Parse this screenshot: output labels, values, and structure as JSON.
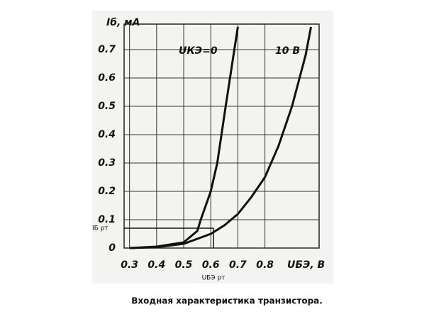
{
  "chart_data": {
    "type": "line",
    "y_label": "Iб, мА",
    "x_label": "UБЭ, В",
    "caption": "Входная характеристика транзистора.",
    "xlim": [
      0.28,
      1.0
    ],
    "ylim": [
      0,
      0.79
    ],
    "xticks": [
      0.3,
      0.4,
      0.5,
      0.6,
      0.7,
      0.8
    ],
    "yticks": [
      0,
      0.1,
      0.2,
      0.3,
      0.4,
      0.5,
      0.6,
      0.7
    ],
    "grid": true,
    "series": [
      {
        "name": "UКЭ=0",
        "color": "#111111",
        "x": [
          0.3,
          0.4,
          0.5,
          0.55,
          0.563,
          0.6,
          0.624,
          0.655,
          0.687,
          0.7
        ],
        "values": [
          0,
          0.005,
          0.02,
          0.06,
          0.1,
          0.2,
          0.3,
          0.5,
          0.7,
          0.78
        ]
      },
      {
        "name": "10 В",
        "color": "#111111",
        "x": [
          0.3,
          0.4,
          0.5,
          0.6,
          0.65,
          0.7,
          0.75,
          0.8,
          0.85,
          0.9,
          0.95,
          0.97
        ],
        "values": [
          0,
          0.003,
          0.015,
          0.05,
          0.08,
          0.12,
          0.18,
          0.25,
          0.36,
          0.5,
          0.68,
          0.78
        ]
      }
    ],
    "operating_point": {
      "x": 0.61,
      "y": 0.07,
      "x_label": "UБЭ рт",
      "y_label": "IБ рт"
    }
  }
}
